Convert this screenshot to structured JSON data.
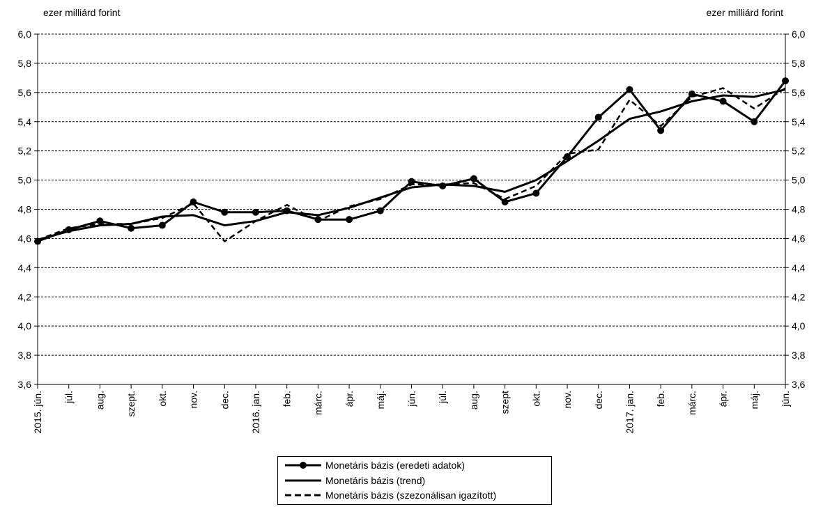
{
  "chart_data": {
    "type": "line",
    "y_unit_left": "ezer milliárd forint",
    "y_unit_right": "ezer milliárd forint",
    "ylim": [
      3.6,
      6.0
    ],
    "ytick_step": 0.2,
    "ytick_labels": [
      "3,6",
      "3,8",
      "4,0",
      "4,2",
      "4,4",
      "4,6",
      "4,8",
      "5,0",
      "5,2",
      "5,4",
      "5,6",
      "5,8",
      "6,0"
    ],
    "grid": "horizontal-dashed",
    "legend_position": "bottom",
    "categories": [
      "2015. jún.",
      "júl.",
      "aug.",
      "szept.",
      "okt.",
      "nov.",
      "dec.",
      "2016. jan.",
      "feb.",
      "márc.",
      "ápr.",
      "máj.",
      "jún.",
      "júl.",
      "aug.",
      "szept",
      "okt.",
      "nov.",
      "dec.",
      "2017. jan.",
      "feb.",
      "márc.",
      "ápr.",
      "máj.",
      "jún."
    ],
    "series": [
      {
        "name": "Monetáris bázis (eredeti adatok)",
        "style": "solid-markers",
        "values": [
          4.58,
          4.66,
          4.72,
          4.67,
          4.69,
          4.85,
          4.78,
          4.78,
          4.79,
          4.73,
          4.73,
          4.79,
          4.99,
          4.96,
          5.01,
          4.85,
          4.91,
          5.16,
          5.43,
          5.62,
          5.34,
          5.59,
          5.54,
          5.4,
          5.68
        ]
      },
      {
        "name": "Monetáris bázis (trend)",
        "style": "solid",
        "values": [
          4.59,
          4.65,
          4.69,
          4.7,
          4.75,
          4.76,
          4.69,
          4.72,
          4.78,
          4.76,
          4.81,
          4.88,
          4.95,
          4.97,
          4.96,
          4.92,
          5.0,
          5.13,
          5.27,
          5.42,
          5.47,
          5.54,
          5.58,
          5.57,
          5.62
        ]
      },
      {
        "name": "Monetáris bázis (szezonálisan igazított)",
        "style": "dashed",
        "values": [
          4.59,
          4.67,
          4.7,
          4.7,
          4.74,
          4.84,
          4.58,
          4.72,
          4.83,
          4.72,
          4.82,
          4.87,
          4.97,
          4.97,
          4.98,
          4.87,
          4.96,
          5.18,
          5.21,
          5.55,
          5.37,
          5.57,
          5.63,
          5.49,
          5.63
        ]
      }
    ]
  }
}
